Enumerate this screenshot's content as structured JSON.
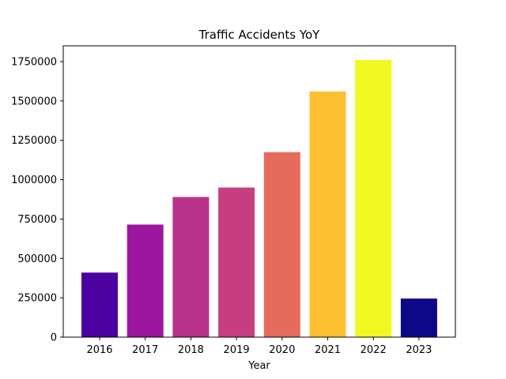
{
  "chart_data": {
    "type": "bar",
    "title": "Traffic Accidents YoY",
    "xlabel": "Year",
    "ylabel": "",
    "categories": [
      "2016",
      "2017",
      "2018",
      "2019",
      "2020",
      "2021",
      "2022",
      "2023"
    ],
    "values": [
      410000,
      715000,
      890000,
      950000,
      1175000,
      1560000,
      1760000,
      245000
    ],
    "colors": [
      "#4c02a1",
      "#9c179e",
      "#b93289",
      "#c73e80",
      "#e56b5d",
      "#fdc030",
      "#f0f921",
      "#0d0887"
    ],
    "yticks": [
      0,
      250000,
      500000,
      750000,
      1000000,
      1250000,
      1500000,
      1750000
    ],
    "ytick_labels": [
      "0",
      "250000",
      "500000",
      "750000",
      "1000000",
      "1250000",
      "1500000",
      "1750000"
    ],
    "ylim": [
      0,
      1750000
    ],
    "grid": false,
    "legend": "none"
  }
}
